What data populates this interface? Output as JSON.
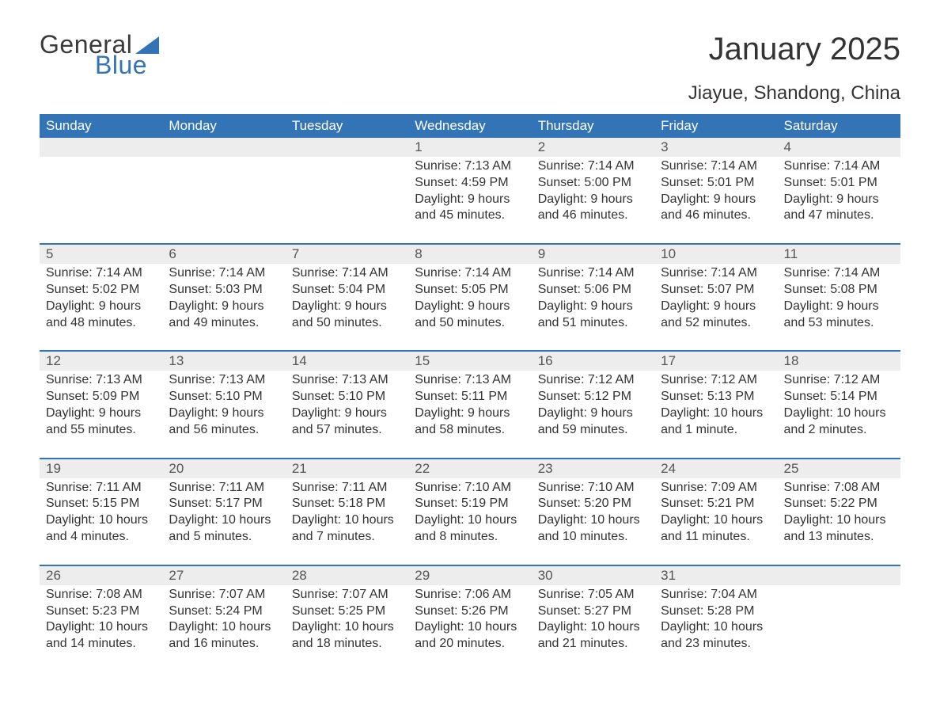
{
  "logo": {
    "word1": "General",
    "word2": "Blue"
  },
  "title": "January 2025",
  "location": "Jiayue, Shandong, China",
  "colors": {
    "header_bg": "#3374b7",
    "header_text": "#ffffff",
    "daynum_bg": "#ededed",
    "border": "#3374b7",
    "body_text": "#333333",
    "logo_blue": "#3374b7",
    "logo_gray": "#3a3a3a"
  },
  "fonts": {
    "title_size_pt": 30,
    "location_size_pt": 18,
    "header_size_pt": 13,
    "body_size_pt": 12
  },
  "days": [
    "Sunday",
    "Monday",
    "Tuesday",
    "Wednesday",
    "Thursday",
    "Friday",
    "Saturday"
  ],
  "weeks": [
    [
      null,
      null,
      null,
      {
        "n": "1",
        "sunrise": "7:13 AM",
        "sunset": "4:59 PM",
        "daylight": "9 hours and 45 minutes."
      },
      {
        "n": "2",
        "sunrise": "7:14 AM",
        "sunset": "5:00 PM",
        "daylight": "9 hours and 46 minutes."
      },
      {
        "n": "3",
        "sunrise": "7:14 AM",
        "sunset": "5:01 PM",
        "daylight": "9 hours and 46 minutes."
      },
      {
        "n": "4",
        "sunrise": "7:14 AM",
        "sunset": "5:01 PM",
        "daylight": "9 hours and 47 minutes."
      }
    ],
    [
      {
        "n": "5",
        "sunrise": "7:14 AM",
        "sunset": "5:02 PM",
        "daylight": "9 hours and 48 minutes."
      },
      {
        "n": "6",
        "sunrise": "7:14 AM",
        "sunset": "5:03 PM",
        "daylight": "9 hours and 49 minutes."
      },
      {
        "n": "7",
        "sunrise": "7:14 AM",
        "sunset": "5:04 PM",
        "daylight": "9 hours and 50 minutes."
      },
      {
        "n": "8",
        "sunrise": "7:14 AM",
        "sunset": "5:05 PM",
        "daylight": "9 hours and 50 minutes."
      },
      {
        "n": "9",
        "sunrise": "7:14 AM",
        "sunset": "5:06 PM",
        "daylight": "9 hours and 51 minutes."
      },
      {
        "n": "10",
        "sunrise": "7:14 AM",
        "sunset": "5:07 PM",
        "daylight": "9 hours and 52 minutes."
      },
      {
        "n": "11",
        "sunrise": "7:14 AM",
        "sunset": "5:08 PM",
        "daylight": "9 hours and 53 minutes."
      }
    ],
    [
      {
        "n": "12",
        "sunrise": "7:13 AM",
        "sunset": "5:09 PM",
        "daylight": "9 hours and 55 minutes."
      },
      {
        "n": "13",
        "sunrise": "7:13 AM",
        "sunset": "5:10 PM",
        "daylight": "9 hours and 56 minutes."
      },
      {
        "n": "14",
        "sunrise": "7:13 AM",
        "sunset": "5:10 PM",
        "daylight": "9 hours and 57 minutes."
      },
      {
        "n": "15",
        "sunrise": "7:13 AM",
        "sunset": "5:11 PM",
        "daylight": "9 hours and 58 minutes."
      },
      {
        "n": "16",
        "sunrise": "7:12 AM",
        "sunset": "5:12 PM",
        "daylight": "9 hours and 59 minutes."
      },
      {
        "n": "17",
        "sunrise": "7:12 AM",
        "sunset": "5:13 PM",
        "daylight": "10 hours and 1 minute."
      },
      {
        "n": "18",
        "sunrise": "7:12 AM",
        "sunset": "5:14 PM",
        "daylight": "10 hours and 2 minutes."
      }
    ],
    [
      {
        "n": "19",
        "sunrise": "7:11 AM",
        "sunset": "5:15 PM",
        "daylight": "10 hours and 4 minutes."
      },
      {
        "n": "20",
        "sunrise": "7:11 AM",
        "sunset": "5:17 PM",
        "daylight": "10 hours and 5 minutes."
      },
      {
        "n": "21",
        "sunrise": "7:11 AM",
        "sunset": "5:18 PM",
        "daylight": "10 hours and 7 minutes."
      },
      {
        "n": "22",
        "sunrise": "7:10 AM",
        "sunset": "5:19 PM",
        "daylight": "10 hours and 8 minutes."
      },
      {
        "n": "23",
        "sunrise": "7:10 AM",
        "sunset": "5:20 PM",
        "daylight": "10 hours and 10 minutes."
      },
      {
        "n": "24",
        "sunrise": "7:09 AM",
        "sunset": "5:21 PM",
        "daylight": "10 hours and 11 minutes."
      },
      {
        "n": "25",
        "sunrise": "7:08 AM",
        "sunset": "5:22 PM",
        "daylight": "10 hours and 13 minutes."
      }
    ],
    [
      {
        "n": "26",
        "sunrise": "7:08 AM",
        "sunset": "5:23 PM",
        "daylight": "10 hours and 14 minutes."
      },
      {
        "n": "27",
        "sunrise": "7:07 AM",
        "sunset": "5:24 PM",
        "daylight": "10 hours and 16 minutes."
      },
      {
        "n": "28",
        "sunrise": "7:07 AM",
        "sunset": "5:25 PM",
        "daylight": "10 hours and 18 minutes."
      },
      {
        "n": "29",
        "sunrise": "7:06 AM",
        "sunset": "5:26 PM",
        "daylight": "10 hours and 20 minutes."
      },
      {
        "n": "30",
        "sunrise": "7:05 AM",
        "sunset": "5:27 PM",
        "daylight": "10 hours and 21 minutes."
      },
      {
        "n": "31",
        "sunrise": "7:04 AM",
        "sunset": "5:28 PM",
        "daylight": "10 hours and 23 minutes."
      },
      null
    ]
  ],
  "labels": {
    "sunrise": "Sunrise: ",
    "sunset": "Sunset: ",
    "daylight": "Daylight: "
  }
}
